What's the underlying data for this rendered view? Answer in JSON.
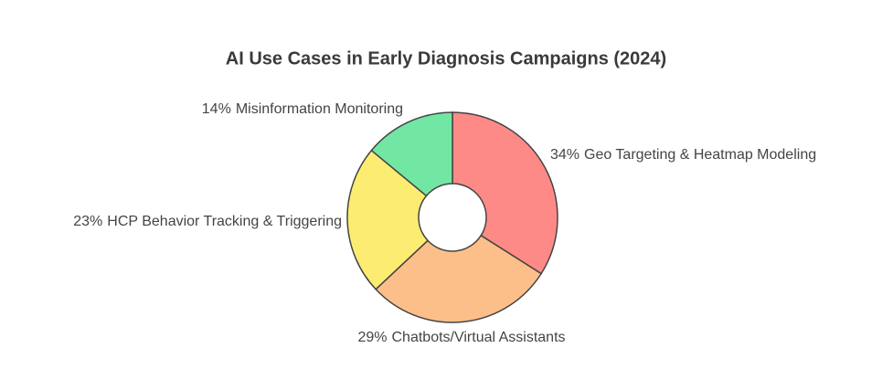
{
  "chart_data": {
    "type": "donut",
    "title": "AI Use Cases in Early Diagnosis Campaigns (2024)",
    "categories": [
      "Geo Targeting & Heatmap Modeling",
      "Chatbots/Virtual Assistants",
      "HCP Behavior Tracking & Triggering",
      "Misinformation Monitoring"
    ],
    "values": [
      34,
      29,
      23,
      14
    ],
    "value_labels": [
      "34%",
      "29%",
      "23%",
      "14%"
    ],
    "colors": [
      "#fe8a87",
      "#fdbf8a",
      "#fdec72",
      "#72e6a3"
    ]
  }
}
